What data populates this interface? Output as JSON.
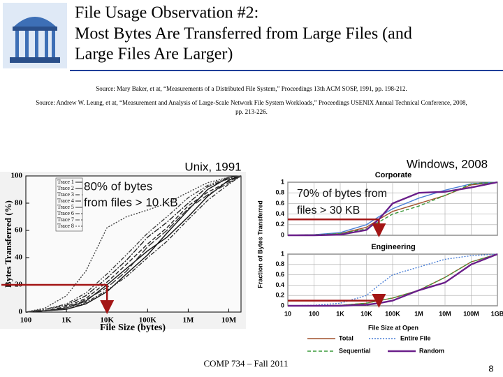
{
  "header": {
    "title": [
      "File Usage Observation #2:",
      "Most Bytes Are Transferred from Large Files (and",
      "Large Files Are Larger)"
    ]
  },
  "sources": [
    [
      "Source: Mary Baker, et at, “Measurements of a Distributed File System,” Proceedings 13th ACM SOSP, 1991, pp. 198-212."
    ],
    [
      "Source: Andrew W. Leung, et at, “Measurement and Analysis of Large-Scale Network File System Workloads,” Proceedings USENIX Annual Technical Conference, 2008,",
      "pp. 213-226."
    ]
  ],
  "footer": "COMP 734 – Fall 2011",
  "page_number": "8",
  "chart_data": [
    {
      "type": "line",
      "title": "Unix, 1991",
      "xlabel": "File Size (bytes)",
      "ylabel": "Bytes Transferred (%)",
      "log_x": true,
      "grid": false,
      "x": [
        100,
        300,
        1000,
        3000,
        10000,
        30000,
        100000,
        300000,
        1000000,
        3000000,
        10000000,
        20000000
      ],
      "xlim": [
        100,
        20000000
      ],
      "xticks": [
        100,
        {
          "value": 1000,
          "label": "1K"
        },
        {
          "value": 10000,
          "label": "10K"
        },
        {
          "value": 100000,
          "label": "100K"
        },
        {
          "value": 1000000,
          "label": "1M"
        },
        {
          "value": 10000000,
          "label": "10M"
        }
      ],
      "ylim": [
        0,
        100
      ],
      "yticks": [
        0,
        20,
        40,
        60,
        80,
        100
      ],
      "series": [
        {
          "name": "Trace 1",
          "color": "#111111",
          "dash": "",
          "values": [
            0,
            1,
            3,
            8,
            20,
            32,
            45,
            55,
            70,
            85,
            97,
            100
          ]
        },
        {
          "name": "Trace 2",
          "color": "#111111",
          "dash": "",
          "values": [
            0,
            1,
            2,
            6,
            15,
            28,
            42,
            58,
            75,
            90,
            99,
            100
          ]
        },
        {
          "name": "Trace 3",
          "color": "#222222",
          "dash": "6 3",
          "values": [
            0,
            1,
            4,
            10,
            22,
            35,
            50,
            62,
            78,
            88,
            96,
            100
          ]
        },
        {
          "name": "Trace 4",
          "color": "#222222",
          "dash": "8 2 2 2",
          "values": [
            0,
            2,
            5,
            12,
            25,
            38,
            55,
            66,
            80,
            92,
            98,
            100
          ]
        },
        {
          "name": "Trace 5",
          "color": "#333333",
          "dash": "10 3",
          "values": [
            0,
            1,
            3,
            9,
            18,
            30,
            48,
            60,
            76,
            86,
            95,
            100
          ]
        },
        {
          "name": "Trace 6",
          "color": "#333333",
          "dash": "6 2 2 2",
          "values": [
            0,
            1,
            2,
            7,
            16,
            26,
            40,
            52,
            68,
            82,
            94,
            100
          ]
        },
        {
          "name": "Trace 7",
          "color": "#444444",
          "dash": "6 2 2 2 2 2",
          "values": [
            0,
            2,
            6,
            14,
            28,
            42,
            58,
            70,
            84,
            93,
            99,
            100
          ]
        },
        {
          "name": "Trace 8",
          "color": "#444444",
          "dash": "2 2",
          "values": [
            0,
            3,
            12,
            30,
            62,
            70,
            75,
            80,
            88,
            95,
            99,
            100
          ]
        }
      ],
      "legend": "upper-left",
      "annotation": [
        "80% of bytes",
        "from files > 10 KB"
      ],
      "guide": {
        "x": 10000,
        "y": 20
      },
      "guide_color": "#a31515"
    },
    {
      "type": "line",
      "group_title": "Windows, 2008",
      "title": "Corporate",
      "ylabel": "Fraction of Bytes Transferred",
      "log_x": true,
      "grid": true,
      "xtick_labels": false,
      "x": [
        10,
        100,
        1000,
        10000,
        30000,
        100000,
        1000000,
        10000000,
        100000000,
        1000000000
      ],
      "xlim": [
        10,
        1000000000
      ],
      "xticks": [
        10,
        100,
        {
          "value": 1000,
          "label": "1K"
        },
        {
          "value": 10000,
          "label": "10K"
        },
        {
          "value": 100000,
          "label": "100K"
        },
        {
          "value": 1000000,
          "label": "1M"
        },
        {
          "value": 10000000,
          "label": "10M"
        },
        {
          "value": 100000000,
          "label": "100M"
        },
        {
          "value": 1000000000,
          "label": "1GB"
        }
      ],
      "ylim": [
        0,
        1
      ],
      "yticks": [
        0,
        0.2,
        0.4,
        0.6,
        0.8,
        1
      ],
      "series": [
        {
          "name": "Total",
          "color": "#a0522d",
          "dash": "",
          "values": [
            0,
            0.01,
            0.03,
            0.15,
            0.3,
            0.45,
            0.6,
            0.75,
            0.95,
            1
          ]
        },
        {
          "name": "Entire File",
          "color": "#4a7fd6",
          "dash": "",
          "values": [
            0,
            0.01,
            0.05,
            0.2,
            0.35,
            0.5,
            0.7,
            0.85,
            0.97,
            1
          ]
        },
        {
          "name": "Sequential",
          "color": "#3a9a3a",
          "dash": "5 3",
          "values": [
            0,
            0.01,
            0.03,
            0.12,
            0.25,
            0.4,
            0.55,
            0.75,
            0.97,
            1
          ]
        },
        {
          "name": "Random",
          "color": "#6a1f8a",
          "dash": "",
          "values": [
            0,
            0,
            0.01,
            0.1,
            0.3,
            0.6,
            0.8,
            0.82,
            0.9,
            1
          ]
        }
      ],
      "annotation": [
        "70% of bytes from",
        "files > 30 KB"
      ],
      "guide": {
        "x": 30000,
        "y": 0.3
      },
      "guide_color": "#a31515"
    },
    {
      "type": "line",
      "title": "Engineering",
      "xlabel": "File Size at Open",
      "log_x": true,
      "grid": true,
      "x": [
        10,
        100,
        1000,
        10000,
        30000,
        100000,
        1000000,
        10000000,
        100000000,
        1000000000
      ],
      "xlim": [
        10,
        1000000000
      ],
      "xticks": [
        10,
        100,
        {
          "value": 1000,
          "label": "1K"
        },
        {
          "value": 10000,
          "label": "10K"
        },
        {
          "value": 100000,
          "label": "100K"
        },
        {
          "value": 1000000,
          "label": "1M"
        },
        {
          "value": 10000000,
          "label": "10M"
        },
        {
          "value": 100000000,
          "label": "100M"
        },
        {
          "value": 1000000000,
          "label": "1GB"
        }
      ],
      "ylim": [
        0,
        1
      ],
      "yticks": [
        0,
        0.2,
        0.4,
        0.6,
        0.8,
        1
      ],
      "series": [
        {
          "name": "Total",
          "color": "#a0522d",
          "dash": "",
          "values": [
            0,
            0,
            0.01,
            0.05,
            0.1,
            0.15,
            0.3,
            0.55,
            0.85,
            1
          ]
        },
        {
          "name": "Entire File",
          "color": "#4a7fd6",
          "dash": "2 2",
          "values": [
            0,
            0.01,
            0.05,
            0.2,
            0.4,
            0.6,
            0.75,
            0.9,
            0.97,
            1
          ]
        },
        {
          "name": "Sequential",
          "color": "#3a9a3a",
          "dash": "5 3",
          "values": [
            0,
            0,
            0.01,
            0.05,
            0.1,
            0.15,
            0.3,
            0.55,
            0.85,
            1
          ]
        },
        {
          "name": "Random",
          "color": "#6a1f8a",
          "dash": "",
          "values": [
            0,
            0,
            0,
            0.02,
            0.05,
            0.1,
            0.3,
            0.45,
            0.8,
            1
          ]
        }
      ],
      "legend": "bottom",
      "guide": {
        "x": 30000,
        "y": 0.1
      },
      "guide_color": "#a31515"
    }
  ]
}
